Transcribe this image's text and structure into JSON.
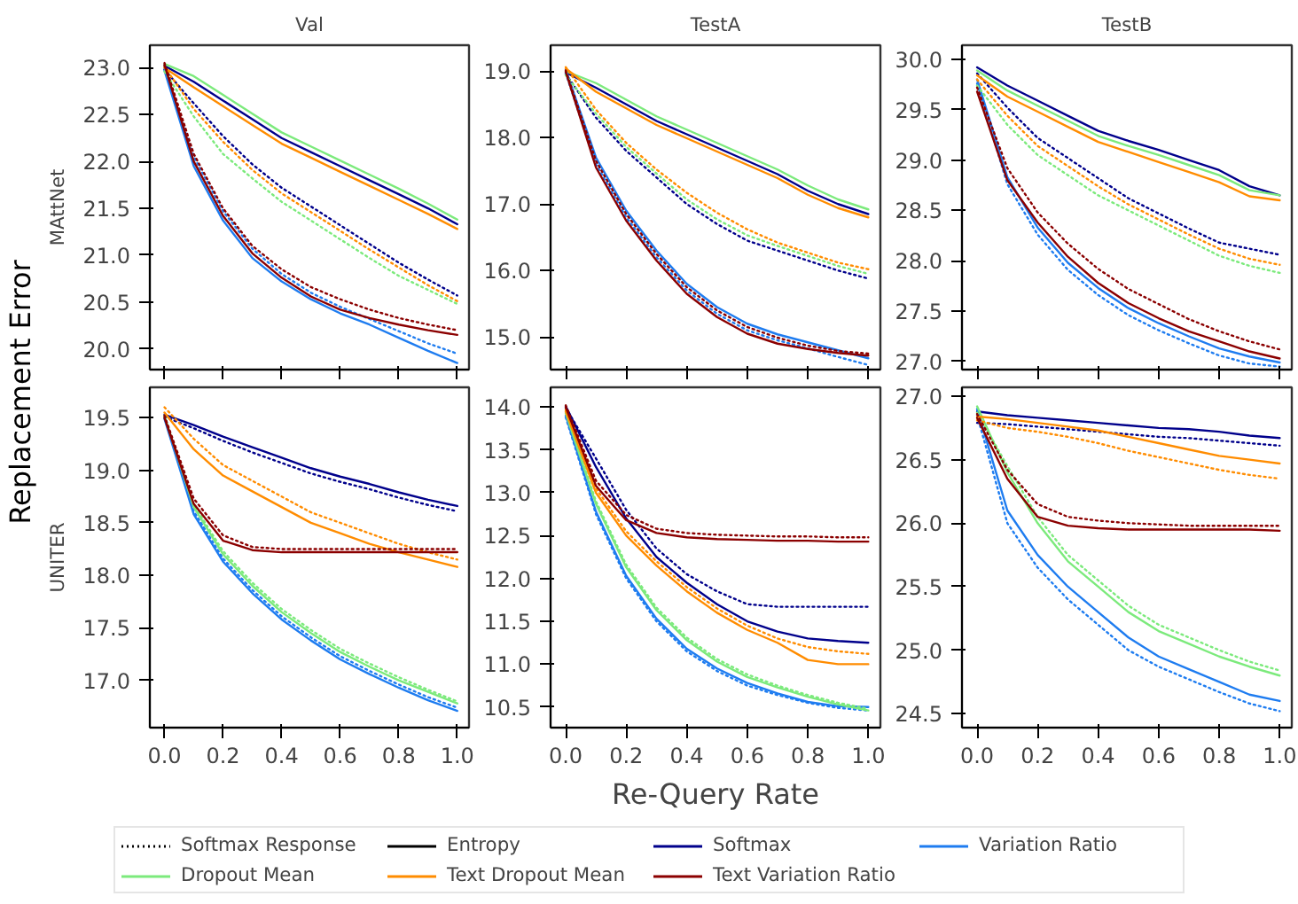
{
  "chart_data": [
    {
      "type": "line",
      "title": "Val",
      "ylabel": "MAttNet",
      "annotations": [
        "Replacement Error"
      ],
      "legend": "bottom",
      "tick_labels": "y",
      "xlim": [
        -0.05,
        1.04
      ],
      "xticks": [
        0.0,
        0.2,
        0.4,
        0.6,
        0.8,
        1.0
      ],
      "ylim": [
        19.78,
        23.24
      ],
      "yticks": [
        {
          "value": 20.0,
          "label": "20.0"
        },
        {
          "value": 20.5,
          "label": "20.5"
        },
        {
          "value": 21.0,
          "label": "21.0"
        },
        {
          "value": 21.5,
          "label": "21.5"
        },
        {
          "value": 22.0,
          "label": "22.0"
        },
        {
          "value": 22.5,
          "label": "22.5"
        },
        {
          "value": 23.0,
          "label": "23.0"
        }
      ],
      "x": [
        0,
        0.1,
        0.2,
        0.3,
        0.4,
        0.5,
        0.6,
        0.7,
        0.8,
        0.9,
        1.0
      ],
      "series": [
        {
          "name": "Softmax Response",
          "color": "#000000",
          "line_style": "dotted",
          "values": [
            null,
            null,
            null,
            null,
            null,
            null,
            null,
            null,
            null,
            null,
            null
          ]
        },
        {
          "name": "Entropy",
          "color": "#000000",
          "line_style": "solid",
          "values": [
            null,
            null,
            null,
            null,
            null,
            null,
            null,
            null,
            null,
            null,
            null
          ]
        },
        {
          "name": "Softmax",
          "color": "#00008b",
          "line_style": "solid",
          "values": [
            23.02,
            22.85,
            22.65,
            22.45,
            22.25,
            22.1,
            21.95,
            21.8,
            21.65,
            21.5,
            21.33
          ]
        },
        {
          "color": "#00008b",
          "line_style": "dotted",
          "values": [
            22.98,
            22.62,
            22.27,
            21.97,
            21.72,
            21.52,
            21.32,
            21.12,
            20.92,
            20.74,
            20.57
          ]
        },
        {
          "name": "Variation Ratio",
          "color": "#1e7cf0",
          "line_style": "solid",
          "values": [
            22.97,
            21.95,
            21.37,
            20.97,
            20.72,
            20.53,
            20.38,
            20.26,
            20.12,
            19.98,
            19.85
          ]
        },
        {
          "color": "#1e7cf0",
          "line_style": "dotted",
          "values": [
            23.0,
            22.05,
            21.47,
            21.07,
            20.8,
            20.6,
            20.45,
            20.32,
            20.19,
            20.06,
            19.95
          ]
        },
        {
          "name": "Dropout Mean",
          "color": "#7cea7c",
          "line_style": "solid",
          "values": [
            23.04,
            22.91,
            22.71,
            22.51,
            22.31,
            22.16,
            22.01,
            21.86,
            21.71,
            21.55,
            21.38
          ]
        },
        {
          "color": "#7cea7c",
          "line_style": "dotted",
          "values": [
            22.96,
            22.48,
            22.08,
            21.82,
            21.57,
            21.37,
            21.17,
            20.97,
            20.78,
            20.63,
            20.48
          ]
        },
        {
          "name": "Text Dropout Mean",
          "color": "#ff8c00",
          "line_style": "solid",
          "values": [
            23.0,
            22.79,
            22.59,
            22.39,
            22.19,
            22.04,
            21.89,
            21.74,
            21.59,
            21.44,
            21.28
          ]
        },
        {
          "color": "#ff8c00",
          "line_style": "dotted",
          "values": [
            23.01,
            22.56,
            22.21,
            21.91,
            21.66,
            21.46,
            21.26,
            21.06,
            20.87,
            20.68,
            20.51
          ]
        },
        {
          "name": "Text Variation Ratio",
          "color": "#8b0000",
          "line_style": "solid",
          "values": [
            23.03,
            22.0,
            21.42,
            21.02,
            20.76,
            20.56,
            20.42,
            20.33,
            20.26,
            20.2,
            20.15
          ]
        },
        {
          "color": "#8b0000",
          "line_style": "dotted",
          "values": [
            23.05,
            22.08,
            21.5,
            21.1,
            20.85,
            20.66,
            20.53,
            20.42,
            20.33,
            20.26,
            20.2
          ]
        }
      ]
    },
    {
      "type": "line",
      "title": "TestA",
      "tick_labels": "y",
      "xlim": [
        -0.05,
        1.04
      ],
      "xticks": [
        0.0,
        0.2,
        0.4,
        0.6,
        0.8,
        1.0
      ],
      "ylim": [
        14.51,
        19.39
      ],
      "yticks": [
        {
          "value": 15.0,
          "label": "15.0"
        },
        {
          "value": 16.0,
          "label": "16.0"
        },
        {
          "value": 17.0,
          "label": "17.0"
        },
        {
          "value": 18.0,
          "label": "18.0"
        },
        {
          "value": 19.0,
          "label": "19.0"
        }
      ],
      "x": [
        0,
        0.1,
        0.2,
        0.3,
        0.4,
        0.5,
        0.6,
        0.7,
        0.8,
        0.9,
        1.0
      ],
      "series": [
        {
          "color": "#00008b",
          "line_style": "solid",
          "values": [
            18.98,
            18.75,
            18.5,
            18.25,
            18.05,
            17.85,
            17.65,
            17.45,
            17.2,
            17.0,
            16.85
          ]
        },
        {
          "color": "#00008b",
          "line_style": "dotted",
          "values": [
            18.96,
            18.3,
            17.8,
            17.4,
            17.0,
            16.7,
            16.45,
            16.3,
            16.15,
            16.0,
            15.88
          ]
        },
        {
          "color": "#1e7cf0",
          "line_style": "solid",
          "values": [
            19.02,
            17.7,
            16.9,
            16.3,
            15.8,
            15.45,
            15.2,
            15.04,
            14.92,
            14.8,
            14.68
          ]
        },
        {
          "color": "#1e7cf0",
          "line_style": "dotted",
          "values": [
            18.97,
            17.6,
            16.8,
            16.2,
            15.7,
            15.35,
            15.1,
            14.95,
            14.83,
            14.7,
            14.58
          ]
        },
        {
          "color": "#7cea7c",
          "line_style": "solid",
          "values": [
            19.0,
            18.82,
            18.57,
            18.32,
            18.12,
            17.92,
            17.72,
            17.52,
            17.28,
            17.07,
            16.92
          ]
        },
        {
          "color": "#7cea7c",
          "line_style": "dotted",
          "values": [
            18.94,
            18.36,
            17.86,
            17.46,
            17.07,
            16.77,
            16.53,
            16.37,
            16.22,
            16.07,
            15.95
          ]
        },
        {
          "color": "#ff8c00",
          "line_style": "solid",
          "values": [
            19.04,
            18.69,
            18.44,
            18.19,
            17.99,
            17.79,
            17.59,
            17.39,
            17.14,
            16.94,
            16.8
          ]
        },
        {
          "color": "#ff8c00",
          "line_style": "dotted",
          "values": [
            19.06,
            18.42,
            17.92,
            17.52,
            17.17,
            16.87,
            16.62,
            16.42,
            16.27,
            16.12,
            16.02
          ]
        },
        {
          "color": "#8b0000",
          "line_style": "solid",
          "values": [
            18.99,
            17.55,
            16.75,
            16.15,
            15.65,
            15.3,
            15.05,
            14.9,
            14.82,
            14.76,
            14.72
          ]
        },
        {
          "color": "#8b0000",
          "line_style": "dotted",
          "values": [
            19.01,
            17.65,
            16.85,
            16.25,
            15.75,
            15.4,
            15.15,
            14.99,
            14.87,
            14.79,
            14.75
          ]
        }
      ]
    },
    {
      "type": "line",
      "title": "TestB",
      "tick_labels": "y",
      "xlim": [
        -0.05,
        1.04
      ],
      "xticks": [
        0.0,
        0.2,
        0.4,
        0.6,
        0.8,
        1.0
      ],
      "ylim": [
        26.92,
        30.14
      ],
      "yticks": [
        {
          "value": 27.0,
          "label": "27.0"
        },
        {
          "value": 27.5,
          "label": "27.5"
        },
        {
          "value": 28.0,
          "label": "28.0"
        },
        {
          "value": 28.5,
          "label": "28.5"
        },
        {
          "value": 29.0,
          "label": "29.0"
        },
        {
          "value": 29.5,
          "label": "29.5"
        },
        {
          "value": 30.0,
          "label": "30.0"
        }
      ],
      "x": [
        0,
        0.1,
        0.2,
        0.3,
        0.4,
        0.5,
        0.6,
        0.7,
        0.8,
        0.9,
        1.0
      ],
      "series": [
        {
          "color": "#00008b",
          "line_style": "solid",
          "values": [
            29.92,
            29.74,
            29.59,
            29.44,
            29.29,
            29.19,
            29.1,
            29.0,
            28.9,
            28.74,
            28.65
          ]
        },
        {
          "color": "#00008b",
          "line_style": "dotted",
          "values": [
            29.86,
            29.52,
            29.22,
            29.02,
            28.82,
            28.62,
            28.47,
            28.32,
            28.18,
            28.12,
            28.06
          ]
        },
        {
          "color": "#1e7cf0",
          "line_style": "solid",
          "values": [
            29.8,
            28.83,
            28.33,
            27.98,
            27.73,
            27.53,
            27.38,
            27.25,
            27.13,
            27.05,
            26.99
          ]
        },
        {
          "color": "#1e7cf0",
          "line_style": "dotted",
          "values": [
            29.76,
            28.76,
            28.26,
            27.91,
            27.66,
            27.46,
            27.31,
            27.18,
            27.06,
            26.98,
            26.95
          ]
        },
        {
          "color": "#7cea7c",
          "line_style": "solid",
          "values": [
            29.89,
            29.69,
            29.54,
            29.39,
            29.24,
            29.14,
            29.05,
            28.95,
            28.85,
            28.7,
            28.65
          ]
        },
        {
          "color": "#7cea7c",
          "line_style": "dotted",
          "values": [
            29.74,
            29.35,
            29.05,
            28.85,
            28.65,
            28.5,
            28.35,
            28.2,
            28.05,
            27.95,
            27.88
          ]
        },
        {
          "color": "#ff8c00",
          "line_style": "solid",
          "values": [
            29.84,
            29.63,
            29.48,
            29.33,
            29.18,
            29.08,
            28.98,
            28.88,
            28.78,
            28.64,
            28.6
          ]
        },
        {
          "color": "#ff8c00",
          "line_style": "dotted",
          "values": [
            29.8,
            29.44,
            29.14,
            28.94,
            28.74,
            28.56,
            28.41,
            28.26,
            28.12,
            28.02,
            27.96
          ]
        },
        {
          "color": "#8b0000",
          "line_style": "solid",
          "values": [
            29.68,
            28.8,
            28.38,
            28.04,
            27.78,
            27.58,
            27.43,
            27.3,
            27.2,
            27.1,
            27.03
          ]
        },
        {
          "color": "#8b0000",
          "line_style": "dotted",
          "values": [
            29.72,
            28.92,
            28.48,
            28.17,
            27.92,
            27.72,
            27.57,
            27.42,
            27.3,
            27.2,
            27.12
          ]
        }
      ]
    },
    {
      "type": "line",
      "ylabel": "UNITER",
      "xlim": [
        -0.05,
        1.04
      ],
      "xticks": [
        {
          "value": 0.0,
          "label": "0.0"
        },
        {
          "value": 0.2,
          "label": "0.2"
        },
        {
          "value": 0.4,
          "label": "0.4"
        },
        {
          "value": 0.6,
          "label": "0.6"
        },
        {
          "value": 0.8,
          "label": "0.8"
        },
        {
          "value": 1.0,
          "label": "1.0"
        }
      ],
      "ylim": [
        16.55,
        19.79
      ],
      "yticks": [
        {
          "value": 17.0,
          "label": "17.0"
        },
        {
          "value": 17.5,
          "label": "17.5"
        },
        {
          "value": 18.0,
          "label": "18.0"
        },
        {
          "value": 18.5,
          "label": "18.5"
        },
        {
          "value": 19.0,
          "label": "19.0"
        },
        {
          "value": 19.5,
          "label": "19.5"
        }
      ],
      "x": [
        0,
        0.1,
        0.2,
        0.3,
        0.4,
        0.5,
        0.6,
        0.7,
        0.8,
        0.9,
        1.0
      ],
      "series": [
        {
          "color": "#00008b",
          "line_style": "solid",
          "values": [
            19.53,
            19.43,
            19.32,
            19.22,
            19.12,
            19.02,
            18.94,
            18.87,
            18.79,
            18.72,
            18.66
          ]
        },
        {
          "color": "#00008b",
          "line_style": "dotted",
          "values": [
            19.51,
            19.4,
            19.28,
            19.17,
            19.07,
            18.97,
            18.89,
            18.82,
            18.74,
            18.67,
            18.61
          ]
        },
        {
          "color": "#1e7cf0",
          "line_style": "solid",
          "values": [
            19.49,
            18.58,
            18.13,
            17.83,
            17.58,
            17.38,
            17.2,
            17.06,
            16.93,
            16.81,
            16.71
          ]
        },
        {
          "color": "#1e7cf0",
          "line_style": "dotted",
          "values": [
            19.5,
            18.61,
            18.16,
            17.86,
            17.61,
            17.41,
            17.23,
            17.09,
            16.96,
            16.84,
            16.74
          ]
        },
        {
          "color": "#7cea7c",
          "line_style": "solid",
          "values": [
            19.52,
            18.65,
            18.2,
            17.9,
            17.65,
            17.45,
            17.27,
            17.13,
            17.0,
            16.89,
            16.78
          ]
        },
        {
          "color": "#7cea7c",
          "line_style": "dotted",
          "values": [
            19.51,
            18.67,
            18.23,
            17.93,
            17.68,
            17.48,
            17.3,
            17.16,
            17.03,
            16.91,
            16.8
          ]
        },
        {
          "color": "#ff8c00",
          "line_style": "solid",
          "values": [
            19.55,
            19.2,
            18.95,
            18.8,
            18.65,
            18.5,
            18.4,
            18.3,
            18.22,
            18.15,
            18.08
          ]
        },
        {
          "color": "#ff8c00",
          "line_style": "dotted",
          "values": [
            19.6,
            19.3,
            19.05,
            18.9,
            18.75,
            18.6,
            18.5,
            18.4,
            18.3,
            18.22,
            18.15
          ]
        },
        {
          "color": "#8b0000",
          "line_style": "solid",
          "values": [
            19.5,
            18.68,
            18.33,
            18.24,
            18.22,
            18.22,
            18.22,
            18.22,
            18.22,
            18.22,
            18.22
          ]
        },
        {
          "color": "#8b0000",
          "line_style": "dotted",
          "values": [
            19.52,
            18.73,
            18.38,
            18.27,
            18.25,
            18.25,
            18.25,
            18.25,
            18.25,
            18.25,
            18.25
          ]
        }
      ]
    },
    {
      "type": "line",
      "xlabel": "Re-Query Rate",
      "xlim": [
        -0.05,
        1.04
      ],
      "xticks": [
        {
          "value": 0.0,
          "label": "0.0"
        },
        {
          "value": 0.2,
          "label": "0.2"
        },
        {
          "value": 0.4,
          "label": "0.4"
        },
        {
          "value": 0.6,
          "label": "0.6"
        },
        {
          "value": 0.8,
          "label": "0.8"
        },
        {
          "value": 1.0,
          "label": "1.0"
        }
      ],
      "ylim": [
        10.26,
        14.23
      ],
      "yticks": [
        {
          "value": 10.5,
          "label": "10.5"
        },
        {
          "value": 11.0,
          "label": "11.0"
        },
        {
          "value": 11.5,
          "label": "11.5"
        },
        {
          "value": 12.0,
          "label": "12.0"
        },
        {
          "value": 12.5,
          "label": "12.5"
        },
        {
          "value": 13.0,
          "label": "13.0"
        },
        {
          "value": 13.5,
          "label": "13.5"
        },
        {
          "value": 14.0,
          "label": "14.0"
        }
      ],
      "x": [
        0,
        0.1,
        0.2,
        0.3,
        0.4,
        0.5,
        0.6,
        0.7,
        0.8,
        0.9,
        1.0
      ],
      "series": [
        {
          "color": "#00008b",
          "line_style": "solid",
          "values": [
            14.01,
            13.3,
            12.7,
            12.25,
            11.95,
            11.7,
            11.5,
            11.38,
            11.3,
            11.27,
            11.25
          ]
        },
        {
          "color": "#00008b",
          "line_style": "dotted",
          "values": [
            13.99,
            13.4,
            12.8,
            12.35,
            12.05,
            11.85,
            11.7,
            11.67,
            11.67,
            11.67,
            11.67
          ]
        },
        {
          "color": "#1e7cf0",
          "line_style": "solid",
          "values": [
            13.9,
            12.78,
            12.03,
            11.53,
            11.18,
            10.95,
            10.78,
            10.66,
            10.56,
            10.51,
            10.5
          ]
        },
        {
          "color": "#1e7cf0",
          "line_style": "dotted",
          "values": [
            13.88,
            12.75,
            12.0,
            11.5,
            11.15,
            10.92,
            10.75,
            10.64,
            10.55,
            10.49,
            10.46
          ]
        },
        {
          "color": "#7cea7c",
          "line_style": "solid",
          "values": [
            13.93,
            12.87,
            12.13,
            11.63,
            11.28,
            11.03,
            10.85,
            10.73,
            10.62,
            10.53,
            10.46
          ]
        },
        {
          "color": "#7cea7c",
          "line_style": "dotted",
          "values": [
            13.95,
            12.9,
            12.16,
            11.66,
            11.31,
            11.06,
            10.88,
            10.75,
            10.64,
            10.55,
            10.48
          ]
        },
        {
          "color": "#ff8c00",
          "line_style": "solid",
          "values": [
            13.95,
            13.0,
            12.5,
            12.15,
            11.85,
            11.6,
            11.4,
            11.25,
            11.05,
            11.0,
            11.0
          ]
        },
        {
          "color": "#ff8c00",
          "line_style": "dotted",
          "values": [
            13.97,
            13.05,
            12.55,
            12.2,
            11.9,
            11.65,
            11.45,
            11.3,
            11.2,
            11.15,
            11.12
          ]
        },
        {
          "color": "#8b0000",
          "line_style": "solid",
          "values": [
            14.0,
            13.08,
            12.68,
            12.53,
            12.48,
            12.46,
            12.45,
            12.44,
            12.44,
            12.43,
            12.43
          ]
        },
        {
          "color": "#8b0000",
          "line_style": "dotted",
          "values": [
            14.02,
            13.14,
            12.74,
            12.58,
            12.53,
            12.51,
            12.5,
            12.49,
            12.49,
            12.48,
            12.48
          ]
        }
      ]
    },
    {
      "type": "line",
      "xlim": [
        -0.05,
        1.04
      ],
      "xticks": [
        {
          "value": 0.0,
          "label": "0.0"
        },
        {
          "value": 0.2,
          "label": "0.2"
        },
        {
          "value": 0.4,
          "label": "0.4"
        },
        {
          "value": 0.6,
          "label": "0.6"
        },
        {
          "value": 0.8,
          "label": "0.8"
        },
        {
          "value": 1.0,
          "label": "1.0"
        }
      ],
      "ylim": [
        24.39,
        27.07
      ],
      "yticks": [
        {
          "value": 24.5,
          "label": "24.5"
        },
        {
          "value": 25.0,
          "label": "25.0"
        },
        {
          "value": 25.5,
          "label": "25.5"
        },
        {
          "value": 26.0,
          "label": "26.0"
        },
        {
          "value": 26.5,
          "label": "26.5"
        },
        {
          "value": 27.0,
          "label": "27.0"
        }
      ],
      "x": [
        0,
        0.1,
        0.2,
        0.3,
        0.4,
        0.5,
        0.6,
        0.7,
        0.8,
        0.9,
        1.0
      ],
      "series": [
        {
          "color": "#00008b",
          "line_style": "solid",
          "values": [
            26.88,
            26.85,
            26.83,
            26.81,
            26.79,
            26.77,
            26.75,
            26.74,
            26.72,
            26.69,
            26.67
          ]
        },
        {
          "color": "#00008b",
          "line_style": "dotted",
          "values": [
            26.79,
            26.78,
            26.76,
            26.74,
            26.72,
            26.7,
            26.68,
            26.67,
            26.65,
            26.63,
            26.61
          ]
        },
        {
          "color": "#1e7cf0",
          "line_style": "solid",
          "values": [
            26.9,
            26.1,
            25.75,
            25.5,
            25.3,
            25.1,
            24.95,
            24.85,
            24.75,
            24.65,
            24.6
          ]
        },
        {
          "color": "#1e7cf0",
          "line_style": "dotted",
          "values": [
            26.85,
            26.0,
            25.65,
            25.4,
            25.2,
            25.0,
            24.87,
            24.77,
            24.67,
            24.58,
            24.52
          ]
        },
        {
          "color": "#7cea7c",
          "line_style": "solid",
          "values": [
            26.92,
            26.4,
            26.0,
            25.7,
            25.5,
            25.3,
            25.15,
            25.05,
            24.95,
            24.87,
            24.8
          ]
        },
        {
          "color": "#7cea7c",
          "line_style": "dotted",
          "values": [
            26.87,
            26.45,
            26.05,
            25.75,
            25.55,
            25.35,
            25.2,
            25.1,
            25.0,
            24.91,
            24.84
          ]
        },
        {
          "color": "#ff8c00",
          "line_style": "solid",
          "values": [
            26.84,
            26.82,
            26.79,
            26.76,
            26.73,
            26.68,
            26.63,
            26.58,
            26.53,
            26.5,
            26.47
          ]
        },
        {
          "color": "#ff8c00",
          "line_style": "dotted",
          "values": [
            26.81,
            26.75,
            26.72,
            26.68,
            26.63,
            26.57,
            26.52,
            26.47,
            26.42,
            26.38,
            26.35
          ]
        },
        {
          "color": "#8b0000",
          "line_style": "solid",
          "values": [
            26.83,
            26.35,
            26.05,
            25.98,
            25.96,
            25.95,
            25.95,
            25.95,
            25.95,
            25.95,
            25.94
          ]
        },
        {
          "color": "#8b0000",
          "line_style": "dotted",
          "values": [
            26.86,
            26.42,
            26.15,
            26.05,
            26.02,
            26.0,
            25.99,
            25.98,
            25.98,
            25.98,
            25.98
          ]
        }
      ]
    }
  ]
}
